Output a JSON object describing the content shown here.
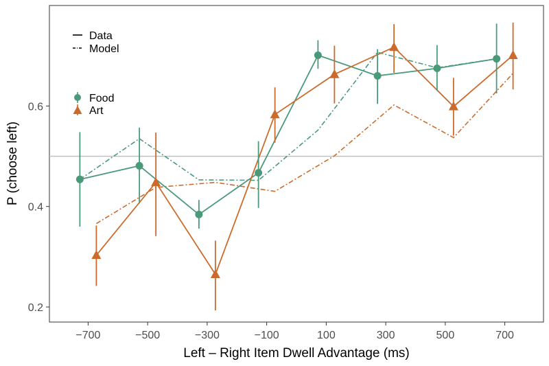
{
  "chart_data": {
    "type": "line",
    "xlabel": "Left – Right Item Dwell Advantage (ms)",
    "ylabel": "P (choose left)",
    "x_ticks": [
      "−700",
      "−500",
      "−300",
      "−100",
      "100",
      "300",
      "500",
      "700"
    ],
    "x_tick_values": [
      -700,
      -500,
      -300,
      -100,
      100,
      300,
      500,
      700
    ],
    "y_ticks": [
      "0.2",
      "0.4",
      "0.6"
    ],
    "y_tick_values": [
      0.2,
      0.4,
      0.6
    ],
    "xlim": [
      -830,
      830
    ],
    "ylim": [
      0.17,
      0.8
    ],
    "reference_line_y": 0.5,
    "grid": false,
    "legend_linetype": {
      "placement": "top-left",
      "entries": [
        "Data",
        "Model"
      ]
    },
    "legend_group": {
      "placement": "top-left",
      "entries": [
        "Food",
        "Art"
      ]
    },
    "series": [
      {
        "name": "Food",
        "color": "#4a9a7a",
        "marker": "circle",
        "x": [
          -700,
          -500,
          -300,
          -100,
          100,
          300,
          500,
          700
        ],
        "data": [
          0.454,
          0.481,
          0.384,
          0.467,
          0.701,
          0.66,
          0.675,
          0.694
        ],
        "error_low": [
          0.36,
          0.406,
          0.356,
          0.397,
          0.674,
          0.604,
          0.63,
          0.625
        ],
        "error_high": [
          0.548,
          0.557,
          0.413,
          0.53,
          0.731,
          0.713,
          0.721,
          0.764
        ],
        "model": [
          0.454,
          0.535,
          0.453,
          0.452,
          0.552,
          0.707,
          0.676,
          0.694
        ]
      },
      {
        "name": "Art",
        "color": "#cc6a2c",
        "marker": "triangle",
        "x": [
          -700,
          -500,
          -300,
          -100,
          100,
          300,
          500,
          700
        ],
        "data": [
          0.303,
          0.448,
          0.265,
          0.583,
          0.663,
          0.717,
          0.599,
          0.701
        ],
        "error_low": [
          0.242,
          0.341,
          0.193,
          0.527,
          0.605,
          0.666,
          0.541,
          0.633
        ],
        "error_high": [
          0.362,
          0.547,
          0.332,
          0.637,
          0.72,
          0.763,
          0.656,
          0.766
        ],
        "model": [
          0.366,
          0.438,
          0.448,
          0.43,
          0.501,
          0.602,
          0.537,
          0.665
        ]
      }
    ]
  }
}
